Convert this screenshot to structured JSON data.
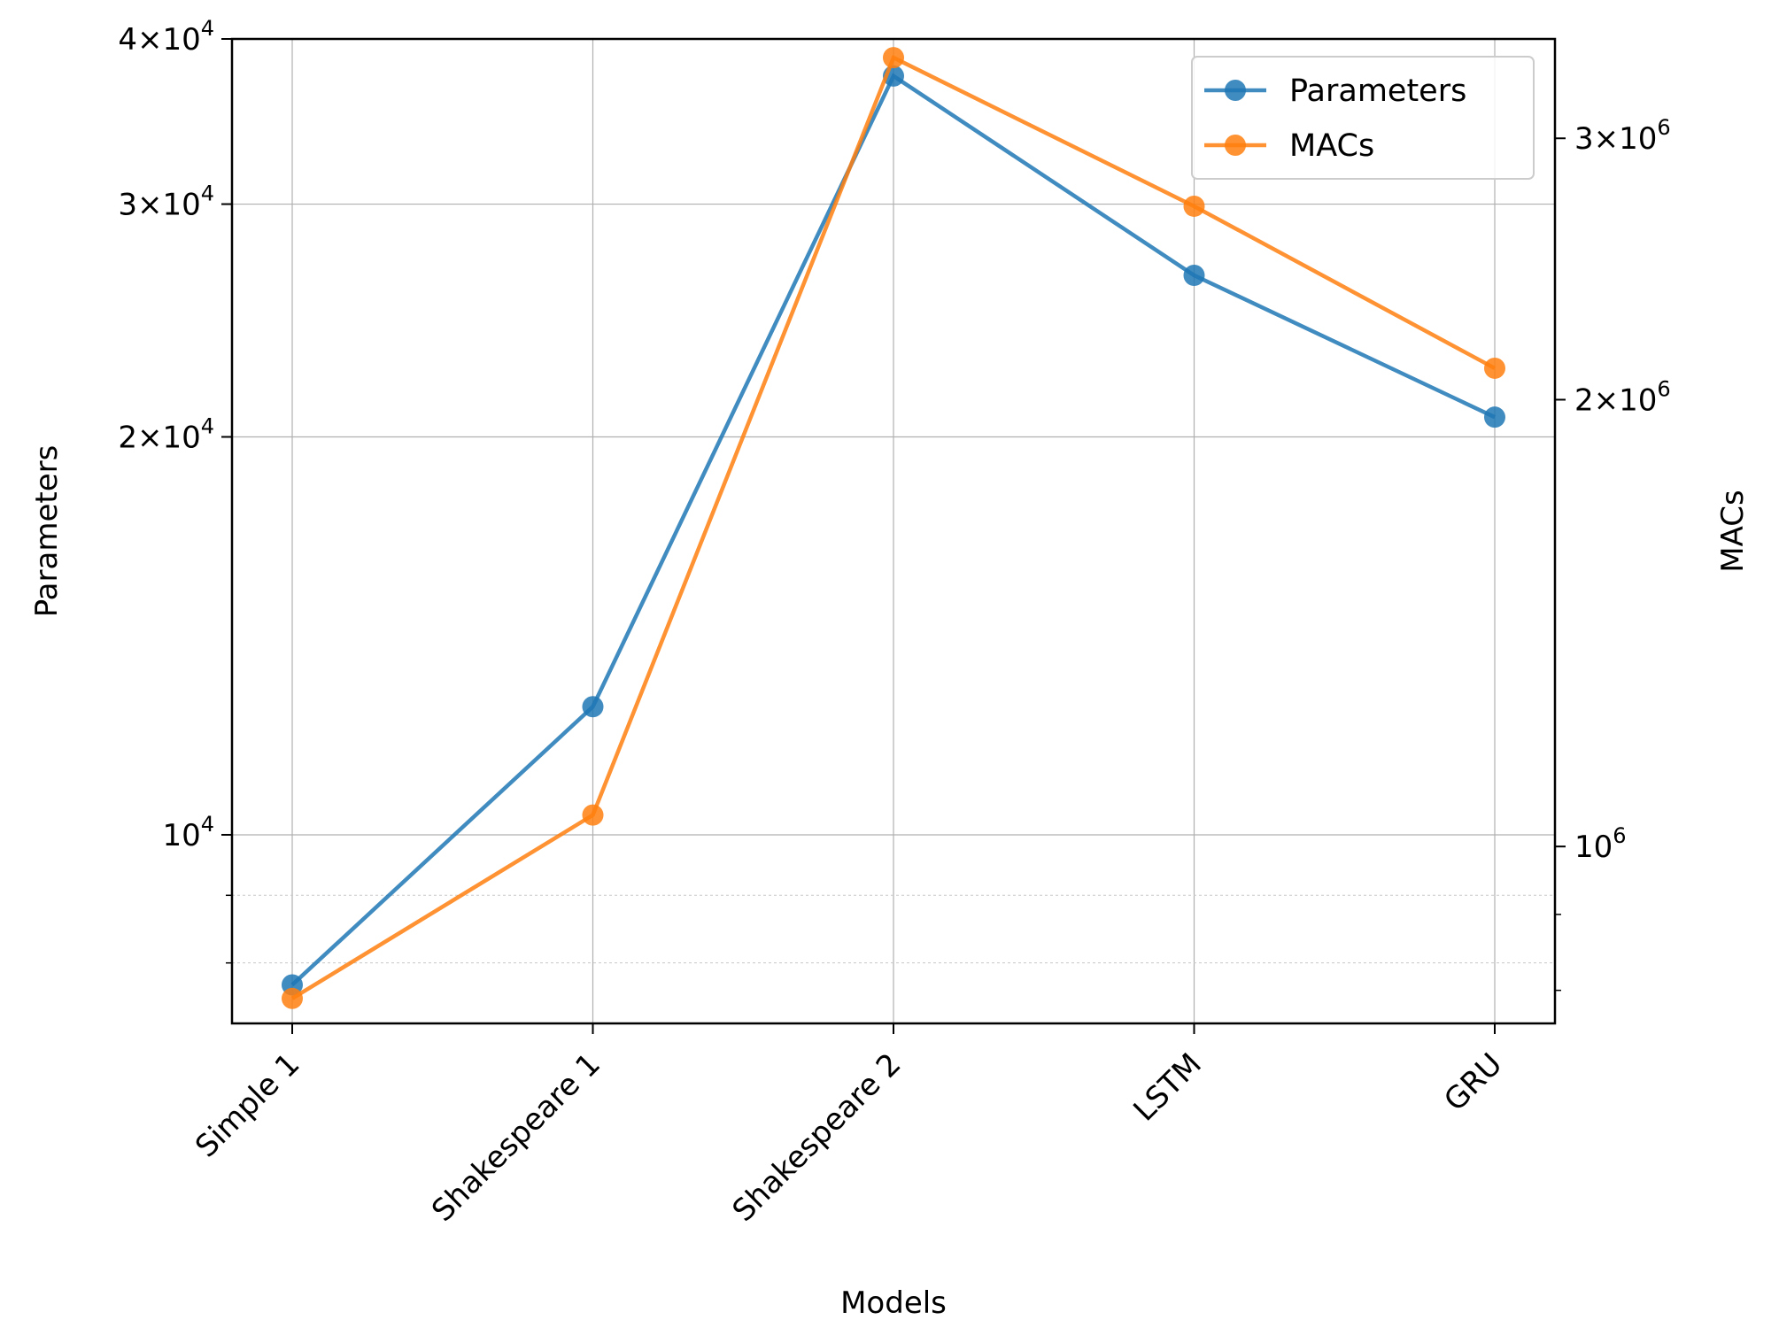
{
  "chart_data": {
    "type": "line",
    "categories": [
      "Simple 1",
      "Shakespeare 1",
      "Shakespeare 2",
      "LSTM",
      "GRU"
    ],
    "xlabel": "Models",
    "ylabel_left": "Parameters",
    "ylabel_right": "MACs",
    "y_left_scale": "log",
    "y_right_scale": "log",
    "y_left_range": [
      7200,
      40000
    ],
    "y_right_range": [
      760000,
      3500000
    ],
    "y_left_ticks": [
      {
        "value": 10000,
        "base": "10",
        "exp": "4",
        "mantissa": ""
      },
      {
        "value": 20000,
        "base": "10",
        "exp": "4",
        "mantissa": "2"
      },
      {
        "value": 30000,
        "base": "10",
        "exp": "4",
        "mantissa": "3"
      },
      {
        "value": 40000,
        "base": "10",
        "exp": "4",
        "mantissa": "4"
      }
    ],
    "y_left_minor_ticks": [
      8000,
      9000
    ],
    "y_right_ticks": [
      {
        "value": 1000000,
        "base": "10",
        "exp": "6",
        "mantissa": ""
      },
      {
        "value": 2000000,
        "base": "10",
        "exp": "6",
        "mantissa": "2"
      },
      {
        "value": 3000000,
        "base": "10",
        "exp": "6",
        "mantissa": "3"
      }
    ],
    "y_right_minor_ticks": [
      800000,
      900000
    ],
    "series": [
      {
        "name": "Parameters",
        "axis": "left",
        "color": "#1f77b4",
        "values": [
          7700,
          12500,
          37500,
          26500,
          20700
        ]
      },
      {
        "name": "MACs",
        "axis": "right",
        "color": "#ff7f0e",
        "values": [
          790000,
          1050000,
          3400000,
          2700000,
          2100000
        ]
      }
    ],
    "legend_position": "top-right",
    "grid": true
  }
}
